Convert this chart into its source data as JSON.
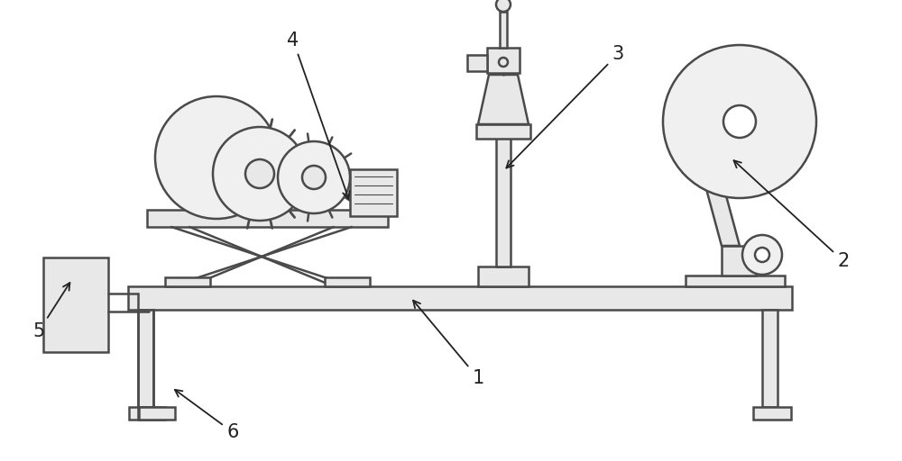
{
  "bg_color": "#ffffff",
  "line_color": "#4a4a4a",
  "line_width": 1.8,
  "label_color": "#222222",
  "fig_width": 10.0,
  "fig_height": 5.12
}
